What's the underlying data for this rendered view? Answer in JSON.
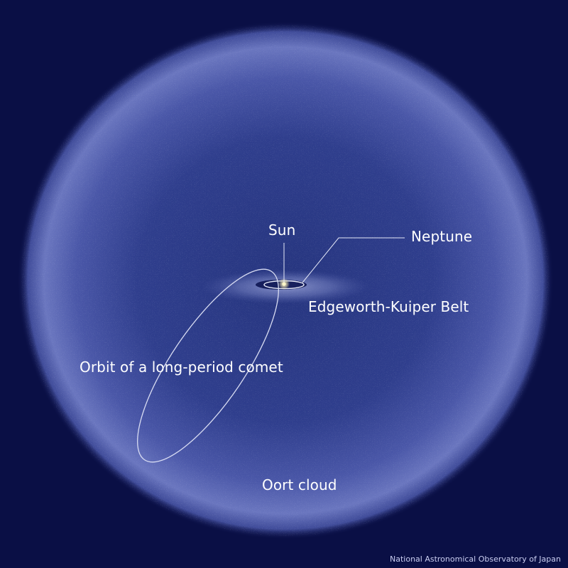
{
  "labels": {
    "sun": "Sun",
    "neptune": "Neptune",
    "kuiper_belt": "Edgeworth-Kuiper Belt",
    "comet_orbit": "Orbit of a long-period comet",
    "oort_cloud": "Oort cloud"
  },
  "credit": "National Astronomical Observatory of Japan",
  "colors": {
    "space": "#0a0f45",
    "cloud_core": "#2a3a8c",
    "cloud_shell": "#6c78c0",
    "belt_glow": "#9aa4d8",
    "orbit_line": "#d8dcf2",
    "sun": "#fff7c8",
    "text": "#ffffff"
  }
}
